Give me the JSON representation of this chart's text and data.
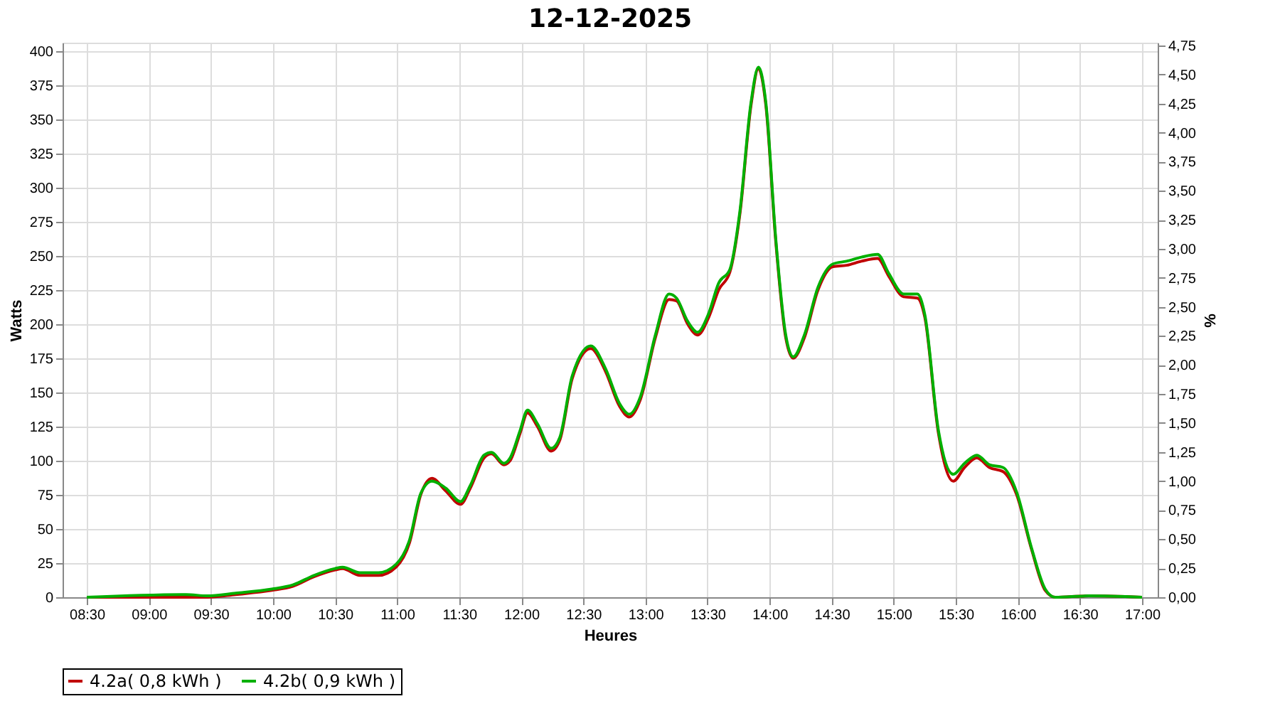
{
  "chart_data": {
    "type": "line",
    "title": "12-12-2025",
    "xlabel": "Heures",
    "ylabel": "Watts",
    "y2label": "%",
    "x": [
      8.5,
      9.3,
      9.47,
      9.7,
      9.99,
      10.16,
      10.33,
      10.5,
      10.56,
      10.7,
      10.85,
      10.99,
      11.1,
      11.19,
      11.28,
      11.39,
      11.51,
      11.59,
      11.7,
      11.76,
      11.86,
      11.91,
      11.99,
      12.05,
      12.13,
      12.24,
      12.31,
      12.41,
      12.56,
      12.68,
      12.79,
      12.87,
      12.96,
      13.08,
      13.19,
      13.25,
      13.34,
      13.42,
      13.51,
      13.59,
      13.68,
      13.76,
      13.85,
      13.91,
      13.97,
      14.05,
      14.13,
      14.19,
      14.28,
      14.39,
      14.51,
      14.62,
      14.74,
      14.87,
      14.96,
      15.08,
      15.19,
      15.25,
      15.36,
      15.48,
      15.57,
      15.67,
      15.77,
      15.88,
      15.99,
      16.11,
      16.22,
      16.3,
      16.57,
      17.0
    ],
    "series": [
      {
        "name": "4.2a( 0,8 kWh )",
        "color": "#c00000",
        "values": [
          0,
          0,
          0,
          2,
          5,
          8,
          15,
          20,
          21,
          16,
          16,
          22,
          40,
          75,
          87,
          78,
          68,
          80,
          102,
          105,
          97,
          100,
          120,
          135,
          125,
          107,
          115,
          160,
          182,
          165,
          140,
          132,
          145,
          190,
          218,
          217,
          200,
          192,
          205,
          225,
          238,
          280,
          360,
          387,
          360,
          260,
          190,
          175,
          190,
          225,
          242,
          243,
          246,
          248,
          235,
          220,
          219,
          205,
          120,
          85,
          95,
          102,
          95,
          92,
          75,
          35,
          5,
          0,
          1,
          0
        ]
      },
      {
        "name": "4.2b( 0,9 kWh )",
        "color": "#00b000",
        "values": [
          0,
          2,
          1,
          3,
          6,
          9,
          16,
          21,
          22,
          18,
          18,
          24,
          42,
          76,
          85,
          80,
          70,
          82,
          104,
          106,
          98,
          102,
          122,
          137,
          127,
          109,
          117,
          162,
          184,
          167,
          142,
          134,
          147,
          192,
          222,
          219,
          202,
          194,
          208,
          230,
          240,
          282,
          362,
          388,
          362,
          262,
          192,
          176,
          192,
          227,
          244,
          246,
          249,
          251,
          237,
          222,
          222,
          207,
          122,
          90,
          98,
          104,
          97,
          95,
          77,
          36,
          6,
          0,
          1,
          0
        ]
      }
    ],
    "xlim": [
      8.305,
      17.126
    ],
    "xticks": [
      {
        "value": 8.5,
        "label": "08:30"
      },
      {
        "value": 9,
        "label": "09:00"
      },
      {
        "value": 9.5,
        "label": "09:30"
      },
      {
        "value": 10,
        "label": "10:00"
      },
      {
        "value": 10.5,
        "label": "10:30"
      },
      {
        "value": 11,
        "label": "11:00"
      },
      {
        "value": 11.5,
        "label": "11:30"
      },
      {
        "value": 12,
        "label": "12:00"
      },
      {
        "value": 12.5,
        "label": "12:30"
      },
      {
        "value": 13,
        "label": "13:00"
      },
      {
        "value": 13.5,
        "label": "13:30"
      },
      {
        "value": 14,
        "label": "14:00"
      },
      {
        "value": 14.5,
        "label": "14:30"
      },
      {
        "value": 15,
        "label": "15:00"
      },
      {
        "value": 15.5,
        "label": "15:30"
      },
      {
        "value": 16,
        "label": "16:00"
      },
      {
        "value": 16.5,
        "label": "16:30"
      },
      {
        "value": 17,
        "label": "17:00"
      }
    ],
    "ylim": [
      0,
      406
    ],
    "yticks": [
      0,
      25,
      50,
      75,
      100,
      125,
      150,
      175,
      200,
      225,
      250,
      275,
      300,
      325,
      350,
      375,
      400
    ],
    "y2lim": [
      0,
      4.775
    ],
    "y2ticks": [
      {
        "value": 0,
        "label": "0,00"
      },
      {
        "value": 0.25,
        "label": "0,25"
      },
      {
        "value": 0.5,
        "label": "0,50"
      },
      {
        "value": 0.75,
        "label": "0,75"
      },
      {
        "value": 1,
        "label": "1,00"
      },
      {
        "value": 1.25,
        "label": "1,25"
      },
      {
        "value": 1.5,
        "label": "1,50"
      },
      {
        "value": 1.75,
        "label": "1,75"
      },
      {
        "value": 2,
        "label": "2,00"
      },
      {
        "value": 2.25,
        "label": "2,25"
      },
      {
        "value": 2.5,
        "label": "2,50"
      },
      {
        "value": 2.75,
        "label": "2,75"
      },
      {
        "value": 3,
        "label": "3,00"
      },
      {
        "value": 3.25,
        "label": "3,25"
      },
      {
        "value": 3.5,
        "label": "3,50"
      },
      {
        "value": 3.75,
        "label": "3,75"
      },
      {
        "value": 4,
        "label": "4,00"
      },
      {
        "value": 4.25,
        "label": "4,25"
      },
      {
        "value": 4.5,
        "label": "4,50"
      },
      {
        "value": 4.75,
        "label": "4,75"
      }
    ],
    "grid": true,
    "legend": "bottom",
    "marker": "none",
    "line_style": "solid"
  }
}
